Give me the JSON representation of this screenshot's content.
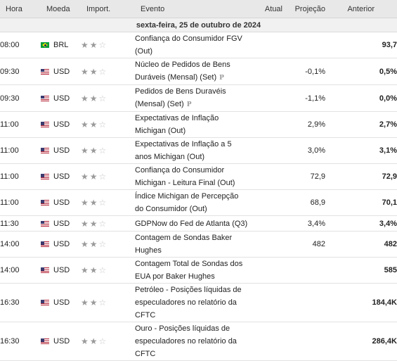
{
  "columns": {
    "time": "Hora",
    "currency": "Moeda",
    "importance": "Import.",
    "event": "Evento",
    "actual": "Atual",
    "forecast": "Projeção",
    "previous": "Anterior"
  },
  "date_label": "sexta-feira, 25 de outubro de 2024",
  "prelim_marker": "P",
  "rows": [
    {
      "time": "08:00",
      "flag": "br-flag-icon",
      "currency": "BRL",
      "stars": 2,
      "event_lines": [
        "Confiança do Consumidor FGV",
        "(Out)"
      ],
      "prelim": false,
      "actual": "",
      "forecast": "",
      "previous": "93,7"
    },
    {
      "time": "09:30",
      "flag": "us-flag-icon",
      "currency": "USD",
      "stars": 2,
      "event_lines": [
        "Núcleo de Pedidos de Bens",
        "Duráveis (Mensal) (Set)"
      ],
      "prelim": true,
      "actual": "",
      "forecast": "-0,1%",
      "previous": "0,5%"
    },
    {
      "time": "09:30",
      "flag": "us-flag-icon",
      "currency": "USD",
      "stars": 2,
      "event_lines": [
        "Pedidos de Bens Duravéis",
        "(Mensal) (Set)"
      ],
      "prelim": true,
      "actual": "",
      "forecast": "-1,1%",
      "previous": "0,0%"
    },
    {
      "time": "11:00",
      "flag": "us-flag-icon",
      "currency": "USD",
      "stars": 2,
      "event_lines": [
        "Expectativas de Inflação",
        "Michigan (Out)"
      ],
      "prelim": false,
      "actual": "",
      "forecast": "2,9%",
      "previous": "2,7%"
    },
    {
      "time": "11:00",
      "flag": "us-flag-icon",
      "currency": "USD",
      "stars": 2,
      "event_lines": [
        "Expectativas de Inflação a 5",
        "anos Michigan (Out)"
      ],
      "prelim": false,
      "actual": "",
      "forecast": "3,0%",
      "previous": "3,1%"
    },
    {
      "time": "11:00",
      "flag": "us-flag-icon",
      "currency": "USD",
      "stars": 2,
      "event_lines": [
        "Confiança do Consumidor",
        "Michigan - Leitura Final (Out)"
      ],
      "prelim": false,
      "actual": "",
      "forecast": "72,9",
      "previous": "72,9"
    },
    {
      "time": "11:00",
      "flag": "us-flag-icon",
      "currency": "USD",
      "stars": 2,
      "event_lines": [
        "Índice Michigan de Percepção",
        "do Consumidor (Out)"
      ],
      "prelim": false,
      "actual": "",
      "forecast": "68,9",
      "previous": "70,1"
    },
    {
      "time": "11:30",
      "flag": "us-flag-icon",
      "currency": "USD",
      "stars": 2,
      "event_lines": [
        "GDPNow do Fed de Atlanta (Q3)"
      ],
      "prelim": false,
      "actual": "",
      "forecast": "3,4%",
      "previous": "3,4%"
    },
    {
      "time": "14:00",
      "flag": "us-flag-icon",
      "currency": "USD",
      "stars": 2,
      "event_lines": [
        "Contagem de Sondas Baker",
        "Hughes"
      ],
      "prelim": false,
      "actual": "",
      "forecast": "482",
      "previous": "482"
    },
    {
      "time": "14:00",
      "flag": "us-flag-icon",
      "currency": "USD",
      "stars": 2,
      "event_lines": [
        "Contagem Total de Sondas dos",
        "EUA por Baker Hughes"
      ],
      "prelim": false,
      "actual": "",
      "forecast": "",
      "previous": "585"
    },
    {
      "time": "16:30",
      "flag": "us-flag-icon",
      "currency": "USD",
      "stars": 2,
      "event_lines": [
        "Petróleo - Posições líquidas de",
        "especuladores no relatório da",
        "CFTC"
      ],
      "prelim": false,
      "actual": "",
      "forecast": "",
      "previous": "184,4K"
    },
    {
      "time": "16:30",
      "flag": "us-flag-icon",
      "currency": "USD",
      "stars": 2,
      "event_lines": [
        "Ouro - Posições líquidas de",
        "especuladores no relatório da",
        "CFTC"
      ],
      "prelim": false,
      "actual": "",
      "forecast": "",
      "previous": "286,4K"
    }
  ]
}
